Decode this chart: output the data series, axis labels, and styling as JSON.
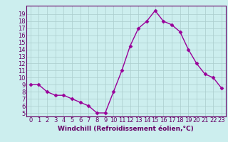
{
  "x": [
    0,
    1,
    2,
    3,
    4,
    5,
    6,
    7,
    8,
    9,
    10,
    11,
    12,
    13,
    14,
    15,
    16,
    17,
    18,
    19,
    20,
    21,
    22,
    23
  ],
  "y": [
    9,
    9,
    8,
    7.5,
    7.5,
    7,
    6.5,
    6,
    5,
    5,
    8,
    11,
    14.5,
    17,
    18,
    19.5,
    18,
    17.5,
    16.5,
    14,
    12,
    10.5,
    10,
    8.5
  ],
  "line_color": "#990099",
  "marker": "D",
  "marker_size": 2.5,
  "line_width": 1.0,
  "xlabel": "Windchill (Refroidissement éolien,°C)",
  "xlabel_fontsize": 6.5,
  "bg_color": "#cceeee",
  "grid_color": "#aacccc",
  "axis_label_color": "#660066",
  "tick_color": "#660066",
  "ylim": [
    4.5,
    20.2
  ],
  "xlim": [
    -0.5,
    23.5
  ],
  "yticks": [
    5,
    6,
    7,
    8,
    9,
    10,
    11,
    12,
    13,
    14,
    15,
    16,
    17,
    18,
    19
  ],
  "xticks": [
    0,
    1,
    2,
    3,
    4,
    5,
    6,
    7,
    8,
    9,
    10,
    11,
    12,
    13,
    14,
    15,
    16,
    17,
    18,
    19,
    20,
    21,
    22,
    23
  ],
  "tick_fontsize": 6,
  "spine_color": "#660066"
}
